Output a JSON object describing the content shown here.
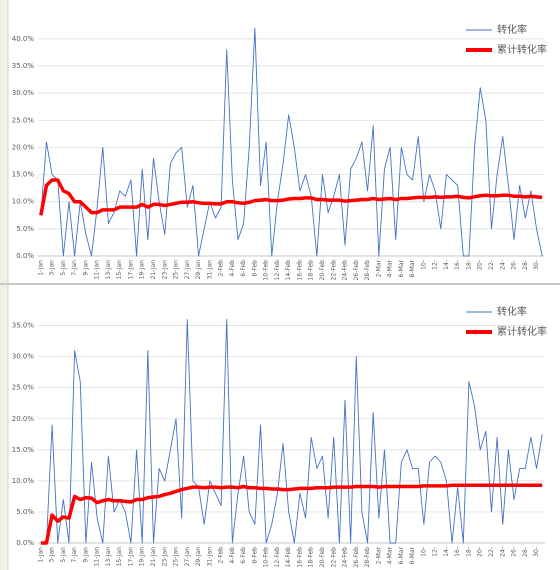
{
  "chart_data": [
    {
      "type": "line",
      "categories": [
        "1-Jan",
        null,
        "3-Jan",
        null,
        "5-Jan",
        null,
        "7-Jan",
        null,
        "9-Jan",
        null,
        "11-Jan",
        null,
        "13-Jan",
        null,
        "15-Jan",
        null,
        "17-Jan",
        null,
        "19-Jan",
        null,
        "21-Jan",
        null,
        "23-Jan",
        null,
        "25-Jan",
        null,
        "27-Jan",
        null,
        "29-Jan",
        null,
        "31-Jan",
        null,
        "2-Feb",
        null,
        "4-Feb",
        null,
        "6-Feb",
        null,
        "8-Feb",
        null,
        "10-Feb",
        null,
        "12-Feb",
        null,
        "14-Feb",
        null,
        "16-Feb",
        null,
        "18-Feb",
        null,
        "20-Feb",
        null,
        "22-Feb",
        null,
        "24-Feb",
        null,
        "26-Feb",
        null,
        "28-Feb",
        null,
        "2-Mar",
        null,
        "4-Mar",
        null,
        "6-Mar",
        null,
        "8-Mar",
        null,
        "10-",
        null,
        "12-",
        null,
        "14-",
        null,
        "16-",
        null,
        "18-",
        null,
        "20-",
        null,
        "22-",
        null,
        "24-",
        null,
        "26-",
        null,
        "28-",
        null,
        "30-",
        null
      ],
      "series": [
        {
          "name": "转化率",
          "color": "#4472c4",
          "values": [
            7.5,
            21,
            15,
            14,
            0,
            10,
            0,
            10,
            4,
            0,
            9,
            20,
            6,
            8,
            12,
            11,
            14,
            0,
            16,
            3,
            18,
            10,
            4,
            17,
            19,
            20,
            9,
            13,
            0,
            5,
            10,
            7,
            9,
            38,
            14,
            3,
            6,
            20,
            42,
            13,
            21,
            0,
            10,
            17,
            26,
            20,
            12,
            15,
            11,
            0,
            15,
            8,
            11,
            15,
            2,
            16,
            18,
            21,
            12,
            24,
            0,
            16,
            20,
            3,
            20,
            15,
            14,
            22,
            10,
            15,
            12,
            5,
            15,
            14,
            13,
            0,
            0,
            20,
            31,
            25,
            5,
            15,
            22,
            13,
            3,
            13,
            7,
            12,
            5,
            0
          ]
        },
        {
          "name": "累计转化率",
          "color": "#ff0000",
          "values": [
            7.5,
            13,
            14,
            14,
            12,
            11.5,
            10,
            10,
            9,
            8,
            8,
            8.5,
            8.5,
            8.5,
            9,
            9,
            9,
            9,
            9.5,
            9,
            9.5,
            9.5,
            9.3,
            9.5,
            9.7,
            9.9,
            9.9,
            10,
            9.8,
            9.7,
            9.7,
            9.6,
            9.6,
            10,
            10,
            9.8,
            9.7,
            9.9,
            10.2,
            10.3,
            10.4,
            10.2,
            10.2,
            10.3,
            10.5,
            10.6,
            10.6,
            10.7,
            10.7,
            10.4,
            10.4,
            10.3,
            10.3,
            10.3,
            10.1,
            10.2,
            10.3,
            10.4,
            10.4,
            10.6,
            10.4,
            10.5,
            10.6,
            10.4,
            10.6,
            10.6,
            10.7,
            10.8,
            10.8,
            10.8,
            10.9,
            10.8,
            10.9,
            10.9,
            11,
            10.8,
            10.7,
            10.9,
            11.1,
            11.2,
            11.1,
            11.1,
            11.2,
            11.2,
            11,
            11,
            10.9,
            11,
            10.9,
            10.8
          ]
        }
      ],
      "ylim": [
        0,
        42
      ],
      "yticks": [
        {
          "value": 0,
          "label": "0.0%"
        },
        {
          "value": 5,
          "label": "5.0%"
        },
        {
          "value": 10,
          "label": "10.0%"
        },
        {
          "value": 15,
          "label": "15.0%"
        },
        {
          "value": 20,
          "label": "20.0%"
        },
        {
          "value": 25,
          "label": "25.0%"
        },
        {
          "value": 30,
          "label": "30.0%"
        },
        {
          "value": 35,
          "label": "35.0%"
        },
        {
          "value": 40,
          "label": "40.0%"
        }
      ],
      "grid": true,
      "legend": "upper right"
    },
    {
      "type": "line",
      "categories": [
        "1-Jan",
        null,
        "3-Jan",
        null,
        "5-Jan",
        null,
        "7-Jan",
        null,
        "9-Jan",
        null,
        "11-Jan",
        null,
        "13-Jan",
        null,
        "15-Jan",
        null,
        "17-Jan",
        null,
        "19-Jan",
        null,
        "21-Jan",
        null,
        "23-Jan",
        null,
        "25-Jan",
        null,
        "27-Jan",
        null,
        "29-Jan",
        null,
        "31-Jan",
        null,
        "2-Feb",
        null,
        "4-Feb",
        null,
        "6-Feb",
        null,
        "8-Feb",
        null,
        "10-Feb",
        null,
        "12-Feb",
        null,
        "14-Feb",
        null,
        "16-Feb",
        null,
        "18-Feb",
        null,
        "20-Feb",
        null,
        "22-Feb",
        null,
        "24-Feb",
        null,
        "26-Feb",
        null,
        "28-Feb",
        null,
        "2-Mar",
        null,
        "4-Mar",
        null,
        "6-Mar",
        null,
        "8-Mar",
        null,
        "10-",
        null,
        "12-",
        null,
        "14-",
        null,
        "16-",
        null,
        "18-",
        null,
        "20-",
        null,
        "22-",
        null,
        "24-",
        null,
        "26-",
        null,
        "28-",
        null,
        "30-",
        null
      ],
      "series": [
        {
          "name": "转化率",
          "color": "#4472c4",
          "values": [
            0,
            0,
            19,
            0,
            7,
            0,
            31,
            26,
            0,
            13,
            4,
            0,
            14,
            5,
            7,
            5,
            0,
            15,
            0,
            31,
            0,
            12,
            10,
            15,
            20,
            4,
            36,
            10,
            9,
            3,
            10,
            8,
            6,
            36,
            0,
            8,
            14,
            5,
            3,
            19,
            0,
            3,
            8,
            16,
            5,
            0,
            8,
            4,
            17,
            12,
            14,
            4,
            17,
            0,
            23,
            0,
            30,
            5,
            0,
            21,
            4,
            15,
            0,
            0,
            13,
            15,
            12,
            12,
            3,
            13,
            14,
            13,
            10,
            0,
            9,
            0,
            26,
            22,
            15,
            18,
            5,
            17,
            3,
            15,
            7,
            12,
            12,
            17,
            12,
            17.5
          ]
        },
        {
          "name": "累计转化率",
          "color": "#ff0000",
          "values": [
            0,
            0,
            4.5,
            3.5,
            4.2,
            4,
            7.5,
            7,
            7.3,
            7.2,
            6.5,
            6.8,
            7,
            6.8,
            6.8,
            6.7,
            6.6,
            7,
            7,
            7.3,
            7.4,
            7.5,
            7.8,
            8,
            8.3,
            8.6,
            8.8,
            9,
            9,
            8.9,
            9,
            9,
            8.9,
            9,
            9,
            8.9,
            9.1,
            8.9,
            8.9,
            8.8,
            8.8,
            8.7,
            8.7,
            8.6,
            8.6,
            8.7,
            8.8,
            8.8,
            8.8,
            8.9,
            8.9,
            8.9,
            9,
            9,
            9,
            9,
            9.1,
            9.1,
            9.1,
            9.1,
            9,
            9.1,
            9.1,
            9.1,
            9.1,
            9.1,
            9.1,
            9.1,
            9.2,
            9.2,
            9.2,
            9.2,
            9.2,
            9.3,
            9.3,
            9.3,
            9.3,
            9.3,
            9.3,
            9.3,
            9.3,
            9.3,
            9.3,
            9.3,
            9.3,
            9.3,
            9.3,
            9.3,
            9.3,
            9.3
          ]
        }
      ],
      "ylim": [
        0,
        38
      ],
      "yticks": [
        {
          "value": 0,
          "label": "0.0%"
        },
        {
          "value": 5,
          "label": "5.0%"
        },
        {
          "value": 10,
          "label": "10.0%"
        },
        {
          "value": 15,
          "label": "15.0%"
        },
        {
          "value": 20,
          "label": "20.0%"
        },
        {
          "value": 25,
          "label": "25.0%"
        },
        {
          "value": 30,
          "label": "30.0%"
        },
        {
          "value": 35,
          "label": "35.0%"
        }
      ],
      "grid": true,
      "legend": "upper right"
    }
  ]
}
